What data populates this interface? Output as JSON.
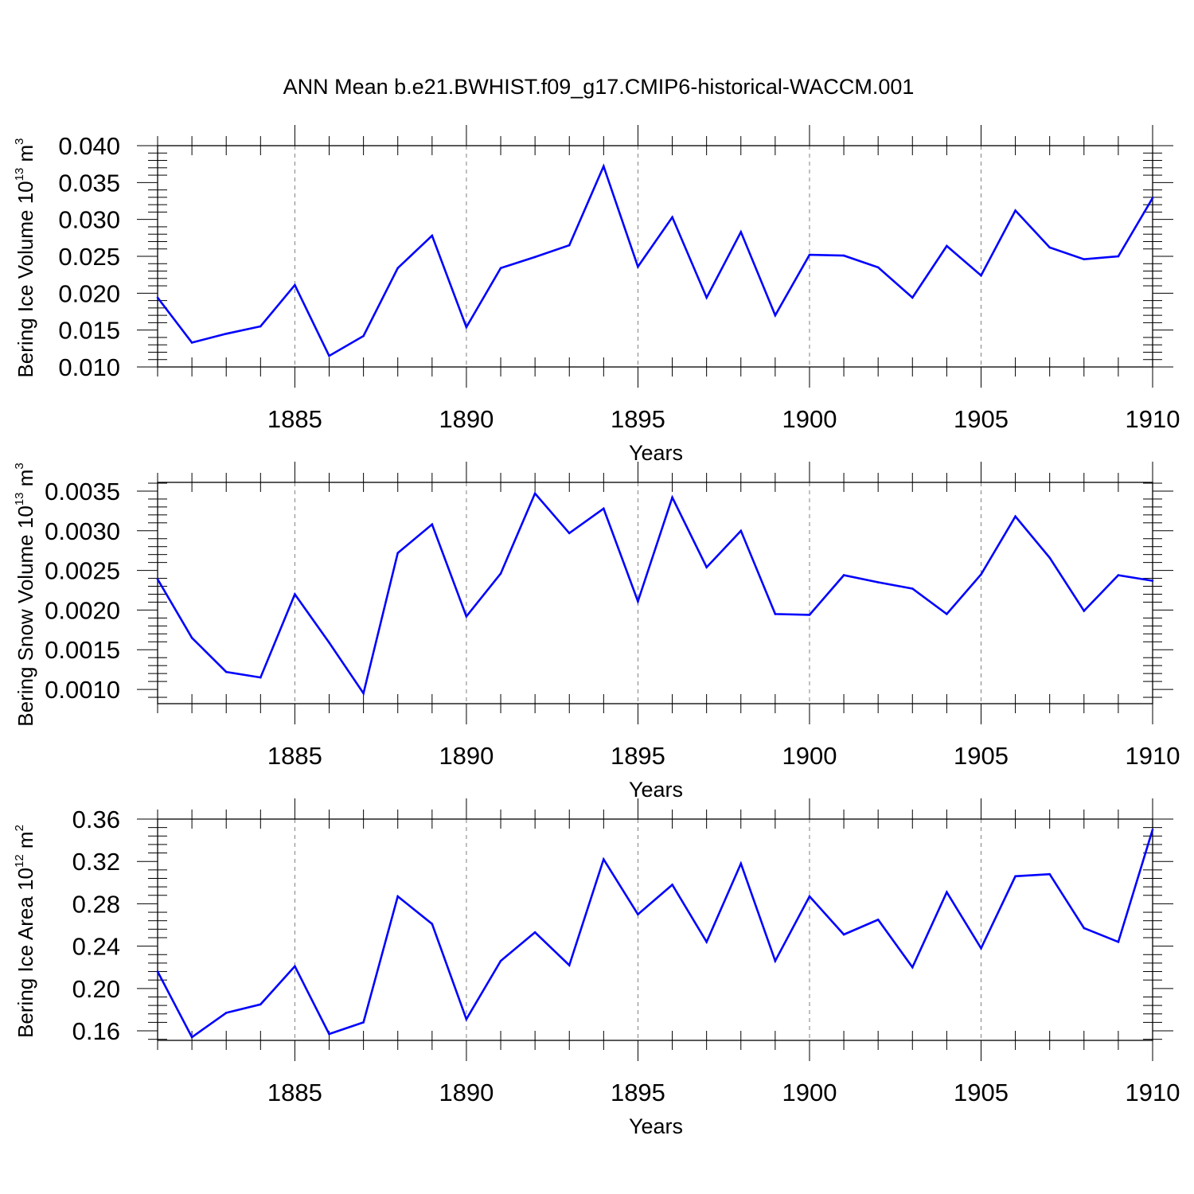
{
  "title": "ANN Mean b.e21.BWHIST.f09_g17.CMIP6-historical-WACCM.001",
  "colors": {
    "line": "#0000ff",
    "axis": "#000000",
    "grid": "#808080"
  },
  "chart_data": [
    {
      "type": "line",
      "xlabel": "Years",
      "ylabel": {
        "text": "Bering Ice Volume 10",
        "exp": "13",
        "unit": " m",
        "unit_exp": "3"
      },
      "xlim": [
        1881,
        1910
      ],
      "ylim": [
        0.01,
        0.04
      ],
      "x_ticks": [
        "1885",
        "1890",
        "1895",
        "1900",
        "1905",
        "1910"
      ],
      "y_ticks": [
        "0.010",
        "0.015",
        "0.020",
        "0.025",
        "0.030",
        "0.035",
        "0.040"
      ],
      "grid": "vertical dashed at major x ticks",
      "x": [
        1881,
        1882,
        1883,
        1884,
        1885,
        1886,
        1887,
        1888,
        1889,
        1890,
        1891,
        1892,
        1893,
        1894,
        1895,
        1896,
        1897,
        1898,
        1899,
        1900,
        1901,
        1902,
        1903,
        1904,
        1905,
        1906,
        1907,
        1908,
        1909,
        1910
      ],
      "values": [
        0.0194,
        0.0133,
        0.0145,
        0.0155,
        0.0211,
        0.0115,
        0.0142,
        0.0234,
        0.0278,
        0.0154,
        0.0234,
        0.0249,
        0.0265,
        0.0372,
        0.0236,
        0.0303,
        0.0194,
        0.0283,
        0.017,
        0.0252,
        0.0251,
        0.0235,
        0.0194,
        0.0264,
        0.0224,
        0.0312,
        0.0262,
        0.0246,
        0.025,
        0.0329
      ]
    },
    {
      "type": "line",
      "xlabel": "Years",
      "ylabel": {
        "text": "Bering Snow Volume 10",
        "exp": "13",
        "unit": " m",
        "unit_exp": "3"
      },
      "xlim": [
        1881,
        1910
      ],
      "ylim": [
        0.00082,
        0.00361
      ],
      "x_ticks": [
        "1885",
        "1890",
        "1895",
        "1900",
        "1905",
        "1910"
      ],
      "y_ticks": [
        "0.0010",
        "0.0015",
        "0.0020",
        "0.0025",
        "0.0030",
        "0.0035"
      ],
      "grid": "vertical dashed at major x ticks",
      "x": [
        1881,
        1882,
        1883,
        1884,
        1885,
        1886,
        1887,
        1888,
        1889,
        1890,
        1891,
        1892,
        1893,
        1894,
        1895,
        1896,
        1897,
        1898,
        1899,
        1900,
        1901,
        1902,
        1903,
        1904,
        1905,
        1906,
        1907,
        1908,
        1909,
        1910
      ],
      "values": [
        0.00239,
        0.00165,
        0.00122,
        0.00115,
        0.0022,
        0.00159,
        0.00095,
        0.00272,
        0.00308,
        0.00192,
        0.00246,
        0.00347,
        0.00297,
        0.00328,
        0.00211,
        0.00342,
        0.00254,
        0.003,
        0.00195,
        0.00194,
        0.00244,
        0.00235,
        0.00227,
        0.00195,
        0.00245,
        0.00318,
        0.00266,
        0.00199,
        0.00244,
        0.00237
      ]
    },
    {
      "type": "line",
      "xlabel": "Years",
      "ylabel": {
        "text": "Bering Ice Area 10",
        "exp": "12",
        "unit": " m",
        "unit_exp": "2"
      },
      "xlim": [
        1881,
        1910
      ],
      "ylim": [
        0.151,
        0.36
      ],
      "x_ticks": [
        "1885",
        "1890",
        "1895",
        "1900",
        "1905",
        "1910"
      ],
      "y_ticks": [
        "0.16",
        "0.20",
        "0.24",
        "0.28",
        "0.32",
        "0.36"
      ],
      "grid": "vertical dashed at major x ticks",
      "x": [
        1881,
        1882,
        1883,
        1884,
        1885,
        1886,
        1887,
        1888,
        1889,
        1890,
        1891,
        1892,
        1893,
        1894,
        1895,
        1896,
        1897,
        1898,
        1899,
        1900,
        1901,
        1902,
        1903,
        1904,
        1905,
        1906,
        1907,
        1908,
        1909,
        1910
      ],
      "values": [
        0.216,
        0.154,
        0.177,
        0.185,
        0.221,
        0.157,
        0.168,
        0.287,
        0.261,
        0.171,
        0.226,
        0.253,
        0.222,
        0.322,
        0.27,
        0.298,
        0.244,
        0.318,
        0.226,
        0.287,
        0.251,
        0.265,
        0.22,
        0.291,
        0.238,
        0.306,
        0.308,
        0.257,
        0.244,
        0.35
      ]
    }
  ]
}
